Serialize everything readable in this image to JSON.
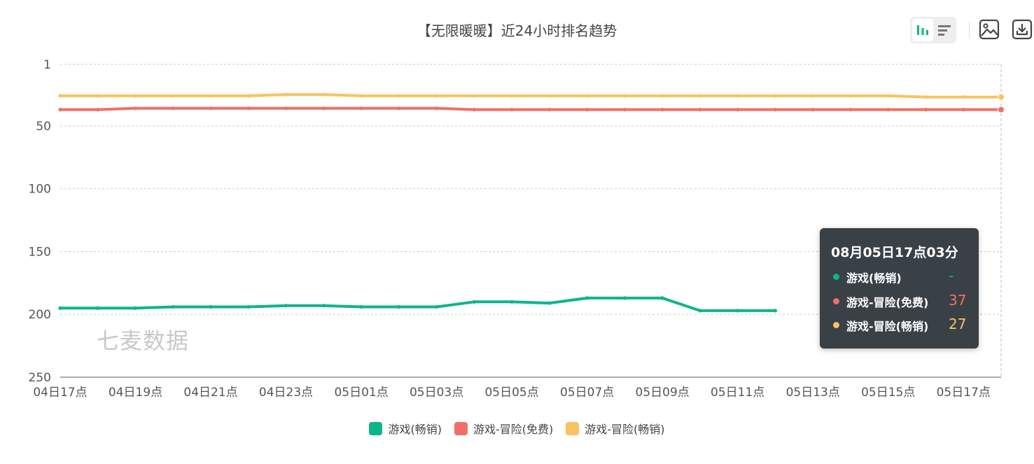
{
  "chart_data": {
    "type": "line",
    "title": "【无限暖暖】近24小时排名趋势",
    "xlabel": "",
    "ylabel": "",
    "y_inverted": true,
    "ylim": [
      1,
      250
    ],
    "yticks": [
      1,
      50,
      100,
      150,
      200,
      250
    ],
    "grid": true,
    "legend_position": "bottom",
    "x_tick_labels": [
      "04日17点",
      "04日19点",
      "04日21点",
      "04日23点",
      "05日01点",
      "05日03点",
      "05日05点",
      "05日07点",
      "05日09点",
      "05日11点",
      "05日13点",
      "05日15点",
      "05日17点"
    ],
    "x": [
      "04日17点",
      "04日18点",
      "04日19点",
      "04日20点",
      "04日21点",
      "04日22点",
      "04日23点",
      "05日00点",
      "05日01点",
      "05日02点",
      "05日03点",
      "05日04点",
      "05日05点",
      "05日06点",
      "05日07点",
      "05日08点",
      "05日09点",
      "05日10点",
      "05日11点",
      "05日12点",
      "05日13点",
      "05日14点",
      "05日15点",
      "05日16点",
      "05日17点",
      "05日17点03分"
    ],
    "series": [
      {
        "name": "游戏(畅销)",
        "color": "#0db58a",
        "values": [
          195,
          195,
          195,
          194,
          194,
          194,
          193,
          193,
          194,
          194,
          194,
          190,
          190,
          191,
          187,
          187,
          187,
          197,
          197,
          197,
          null,
          null,
          null,
          null,
          null,
          null
        ]
      },
      {
        "name": "游戏-冒险(免费)",
        "color": "#f07067",
        "values": [
          37,
          37,
          36,
          36,
          36,
          36,
          36,
          36,
          36,
          36,
          36,
          37,
          37,
          37,
          37,
          37,
          37,
          37,
          37,
          37,
          37,
          37,
          37,
          37,
          37,
          37
        ]
      },
      {
        "name": "游戏-冒险(畅销)",
        "color": "#f8c362",
        "values": [
          26,
          26,
          26,
          26,
          26,
          26,
          25,
          25,
          26,
          26,
          26,
          26,
          26,
          26,
          26,
          26,
          26,
          26,
          26,
          26,
          26,
          26,
          26,
          27,
          27,
          27
        ]
      }
    ]
  },
  "watermark": "七麦数据",
  "tooltip": {
    "title": "08月05日17点03分",
    "rows": [
      {
        "name": "游戏(畅销)",
        "value": "-",
        "color": "#0db58a"
      },
      {
        "name": "游戏-冒险(免费)",
        "value": "37",
        "color": "#f07067"
      },
      {
        "name": "游戏-冒险(畅销)",
        "value": "27",
        "color": "#f8c362"
      }
    ]
  },
  "toolbar": {
    "icons": [
      "bar-chart-icon",
      "list-icon",
      "image-icon",
      "download-icon"
    ],
    "accent": "#0db58a"
  }
}
